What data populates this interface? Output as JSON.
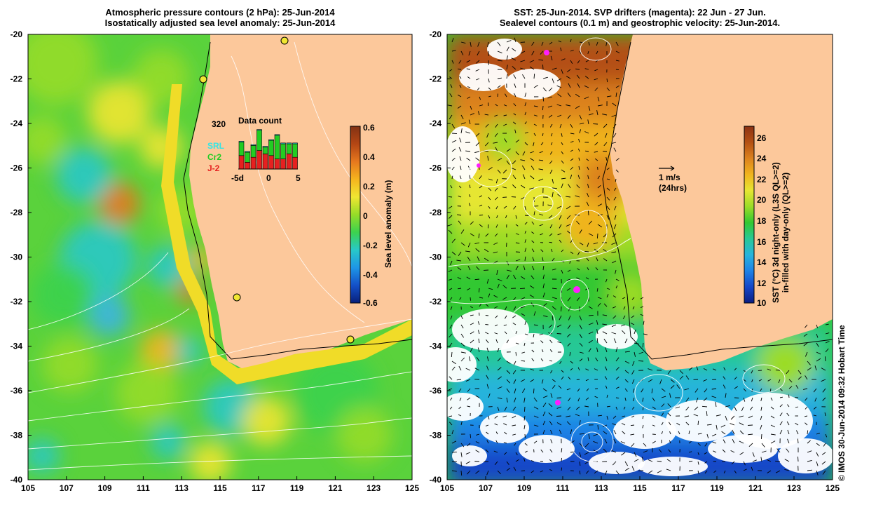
{
  "left_panel": {
    "title_line1": "Atmospheric pressure contours (2 hPa): 25-Jun-2014",
    "title_line2": "Isostatically adjusted sea level anomaly: 25-Jun-2014",
    "colorbar": {
      "label": "Sea level anomaly (m)",
      "ticks": [
        "0.6",
        "0.4",
        "0.2",
        "0",
        "-0.2",
        "-0.4",
        "-0.6"
      ],
      "min": -0.6,
      "max": 0.6
    },
    "inset": {
      "title": "Data count",
      "max_label": "320",
      "x_ticks": [
        "-5d",
        "0",
        "5"
      ],
      "legend": [
        {
          "name": "SRL",
          "color": "#33e6e6"
        },
        {
          "name": "Cr2",
          "color": "#22cc22"
        },
        {
          "name": "J-2",
          "color": "#e62020"
        }
      ],
      "bars": [
        {
          "srl": 5,
          "cr2": 80,
          "j2": 80
        },
        {
          "srl": 5,
          "cr2": 60,
          "j2": 40
        },
        {
          "srl": 5,
          "cr2": 70,
          "j2": 70
        },
        {
          "srl": 5,
          "cr2": 120,
          "j2": 110
        },
        {
          "srl": 5,
          "cr2": 40,
          "j2": 90
        },
        {
          "srl": 5,
          "cr2": 90,
          "j2": 80
        },
        {
          "srl": 5,
          "cr2": 140,
          "j2": 60
        },
        {
          "srl": 5,
          "cr2": 90,
          "j2": 60
        },
        {
          "srl": 5,
          "cr2": 60,
          "j2": 90
        },
        {
          "srl": 5,
          "cr2": 80,
          "j2": 70
        }
      ]
    }
  },
  "right_panel": {
    "title_line1": "SST: 25-Jun-2014. SVP drifters (magenta): 22 Jun - 27 Jun.",
    "title_line2": "Sealevel contours (0.1 m) and geostrophic velocity: 25-Jun-2014.",
    "velocity_scale": "1 m/s",
    "velocity_scale_time": "(24hrs)",
    "colorbar": {
      "label_line1": "SST (°C) 3d night-only (L3S QL>=2)",
      "label_line2": "in-filled with day-only (QL>=2)",
      "ticks": [
        "26",
        "24",
        "22",
        "20",
        "18",
        "16",
        "14",
        "12",
        "10"
      ],
      "min": 10,
      "max": 27
    }
  },
  "axes": {
    "lon_ticks": [
      "105",
      "107",
      "109",
      "111",
      "113",
      "115",
      "117",
      "119",
      "121",
      "123",
      "125"
    ],
    "lat_ticks": [
      "-20",
      "-22",
      "-24",
      "-26",
      "-28",
      "-30",
      "-32",
      "-34",
      "-36",
      "-38",
      "-40"
    ]
  },
  "credit": "© IMOS 30-Jun-2014 09:32 Hobart Time",
  "colors": {
    "land": "#fcc89b",
    "sla_ramp": [
      "#08207a",
      "#1450c8",
      "#1e96e6",
      "#28c8c8",
      "#3cd24e",
      "#96dc28",
      "#f0e632",
      "#f5b41e",
      "#e6781e",
      "#b44614",
      "#823214"
    ],
    "sst_ramp": [
      "#0a1e82",
      "#1446c8",
      "#1e82e6",
      "#28b4dc",
      "#28c896",
      "#32c832",
      "#9bdc28",
      "#e6e632",
      "#f0b41e",
      "#dc821e",
      "#b45014",
      "#8c3214"
    ]
  }
}
